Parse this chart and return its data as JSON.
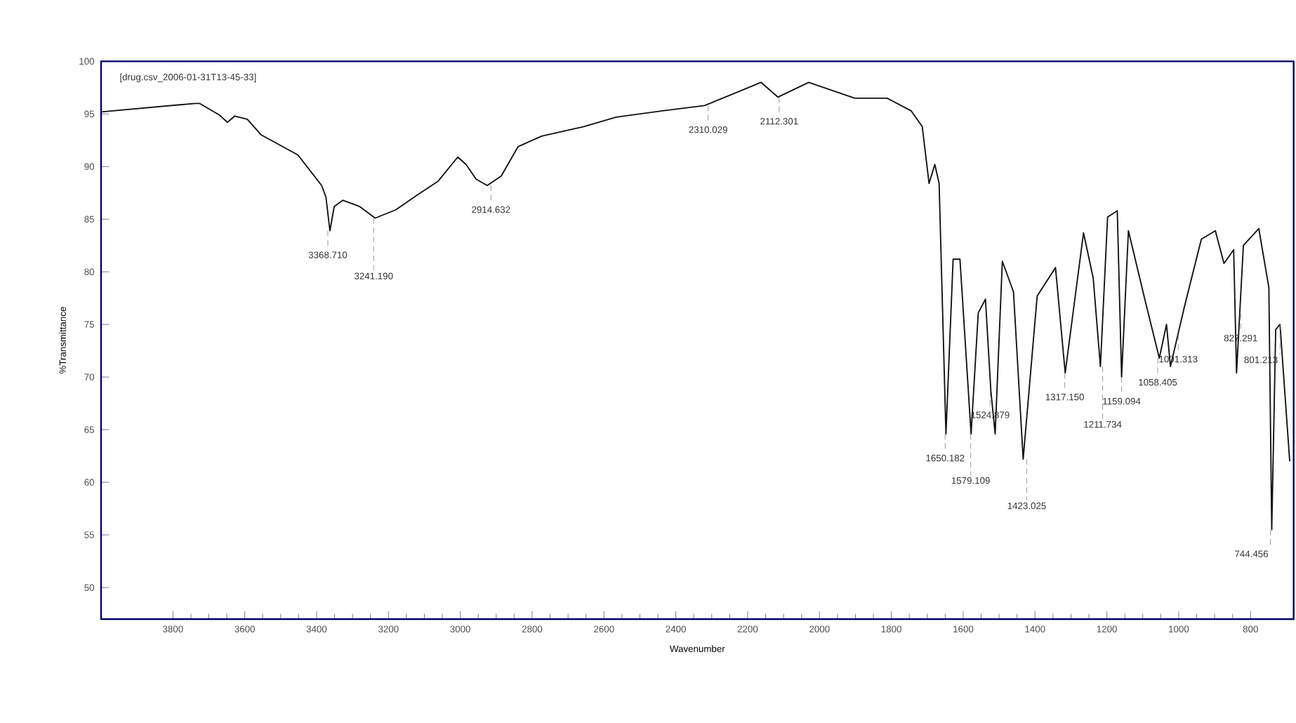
{
  "chart_data": {
    "type": "line",
    "xlabel": "Wavenumber",
    "ylabel": "%Transmittance",
    "x": [
      3999,
      3738,
      3726,
      3671,
      3648,
      3628,
      3593,
      3554,
      3452,
      3386,
      3374,
      3363,
      3351,
      3327,
      3280,
      3237,
      3179,
      3124,
      3062,
      3007,
      2984,
      2956,
      2925,
      2886,
      2839,
      2773,
      2656,
      2566,
      2437,
      2320,
      2241,
      2163,
      2116,
      2030,
      1902,
      1812,
      1745,
      1714,
      1695,
      1679,
      1667,
      1648,
      1628,
      1609,
      1578,
      1558,
      1538,
      1523,
      1511,
      1491,
      1460,
      1433,
      1394,
      1343,
      1316,
      1265,
      1238,
      1218,
      1198,
      1171,
      1159,
      1140,
      1093,
      1054,
      1034,
      1023,
      984,
      937,
      898,
      874,
      847,
      839,
      820,
      777,
      749,
      741,
      730,
      718,
      691
    ],
    "series": [
      {
        "color": "#111111",
        "values": [
          95.2,
          96.0,
          96.0,
          94.9,
          94.2,
          94.8,
          94.5,
          93.0,
          91.1,
          88.2,
          87.1,
          83.9,
          86.2,
          86.8,
          86.2,
          85.1,
          85.9,
          87.2,
          88.6,
          90.9,
          90.2,
          88.8,
          88.2,
          89.1,
          91.9,
          92.9,
          93.8,
          94.7,
          95.3,
          95.8,
          96.9,
          98.0,
          96.6,
          98.0,
          96.5,
          96.5,
          95.3,
          93.8,
          88.4,
          90.2,
          88.4,
          64.6,
          81.2,
          81.2,
          64.6,
          76.1,
          77.4,
          68.7,
          64.6,
          81.0,
          78.1,
          62.2,
          77.7,
          80.4,
          70.4,
          83.7,
          79.4,
          71.0,
          85.2,
          85.8,
          70.0,
          83.9,
          77.2,
          71.8,
          75.0,
          71.0,
          76.7,
          83.1,
          83.9,
          80.8,
          82.1,
          70.4,
          82.5,
          84.1,
          78.5,
          55.5,
          74.5,
          75.0,
          62.0
        ]
      }
    ],
    "xlim": [
      4000,
      680
    ],
    "ylim": [
      47,
      100
    ],
    "xticks": [
      3800,
      3600,
      3400,
      3200,
      3000,
      2800,
      2600,
      2400,
      2200,
      2000,
      1800,
      1600,
      1400,
      1200,
      1000,
      800
    ],
    "yticks": [
      50,
      55,
      60,
      65,
      70,
      75,
      80,
      85,
      90,
      95,
      100
    ],
    "grid": false,
    "marker": "none",
    "line_style": "solid",
    "annotations": [
      "[drug.csv_2006-01-31T13-45-33]",
      {
        "text": "3368.710",
        "x": 3368.71,
        "y": 83.9
      },
      {
        "text": "3241.190",
        "x": 3241.19,
        "y": 85.1
      },
      {
        "text": "2914.632",
        "x": 2914.632,
        "y": 88.2
      },
      {
        "text": "2310.029",
        "x": 2310.029,
        "y": 95.8
      },
      {
        "text": "2112.301",
        "x": 2112.301,
        "y": 96.6
      },
      {
        "text": "1650.182",
        "x": 1650.182,
        "y": 64.6
      },
      {
        "text": "1579.109",
        "x": 1579.109,
        "y": 64.6
      },
      {
        "text": "1524.879",
        "x": 1524.879,
        "y": 68.7
      },
      {
        "text": "1423.025",
        "x": 1423.025,
        "y": 62.2
      },
      {
        "text": "1317.150",
        "x": 1317.15,
        "y": 70.4
      },
      {
        "text": "1211.734",
        "x": 1211.734,
        "y": 71.0
      },
      {
        "text": "1159.094",
        "x": 1159.094,
        "y": 70.0
      },
      {
        "text": "1058.405",
        "x": 1058.405,
        "y": 71.8
      },
      {
        "text": "1001.313",
        "x": 1001.313,
        "y": 74.0
      },
      {
        "text": "827.291",
        "x": 827.291,
        "y": 76.0
      },
      {
        "text": "801.213",
        "x": 718,
        "y": 75.0
      },
      {
        "text": "744.456",
        "x": 744.456,
        "y": 55.5
      }
    ]
  }
}
